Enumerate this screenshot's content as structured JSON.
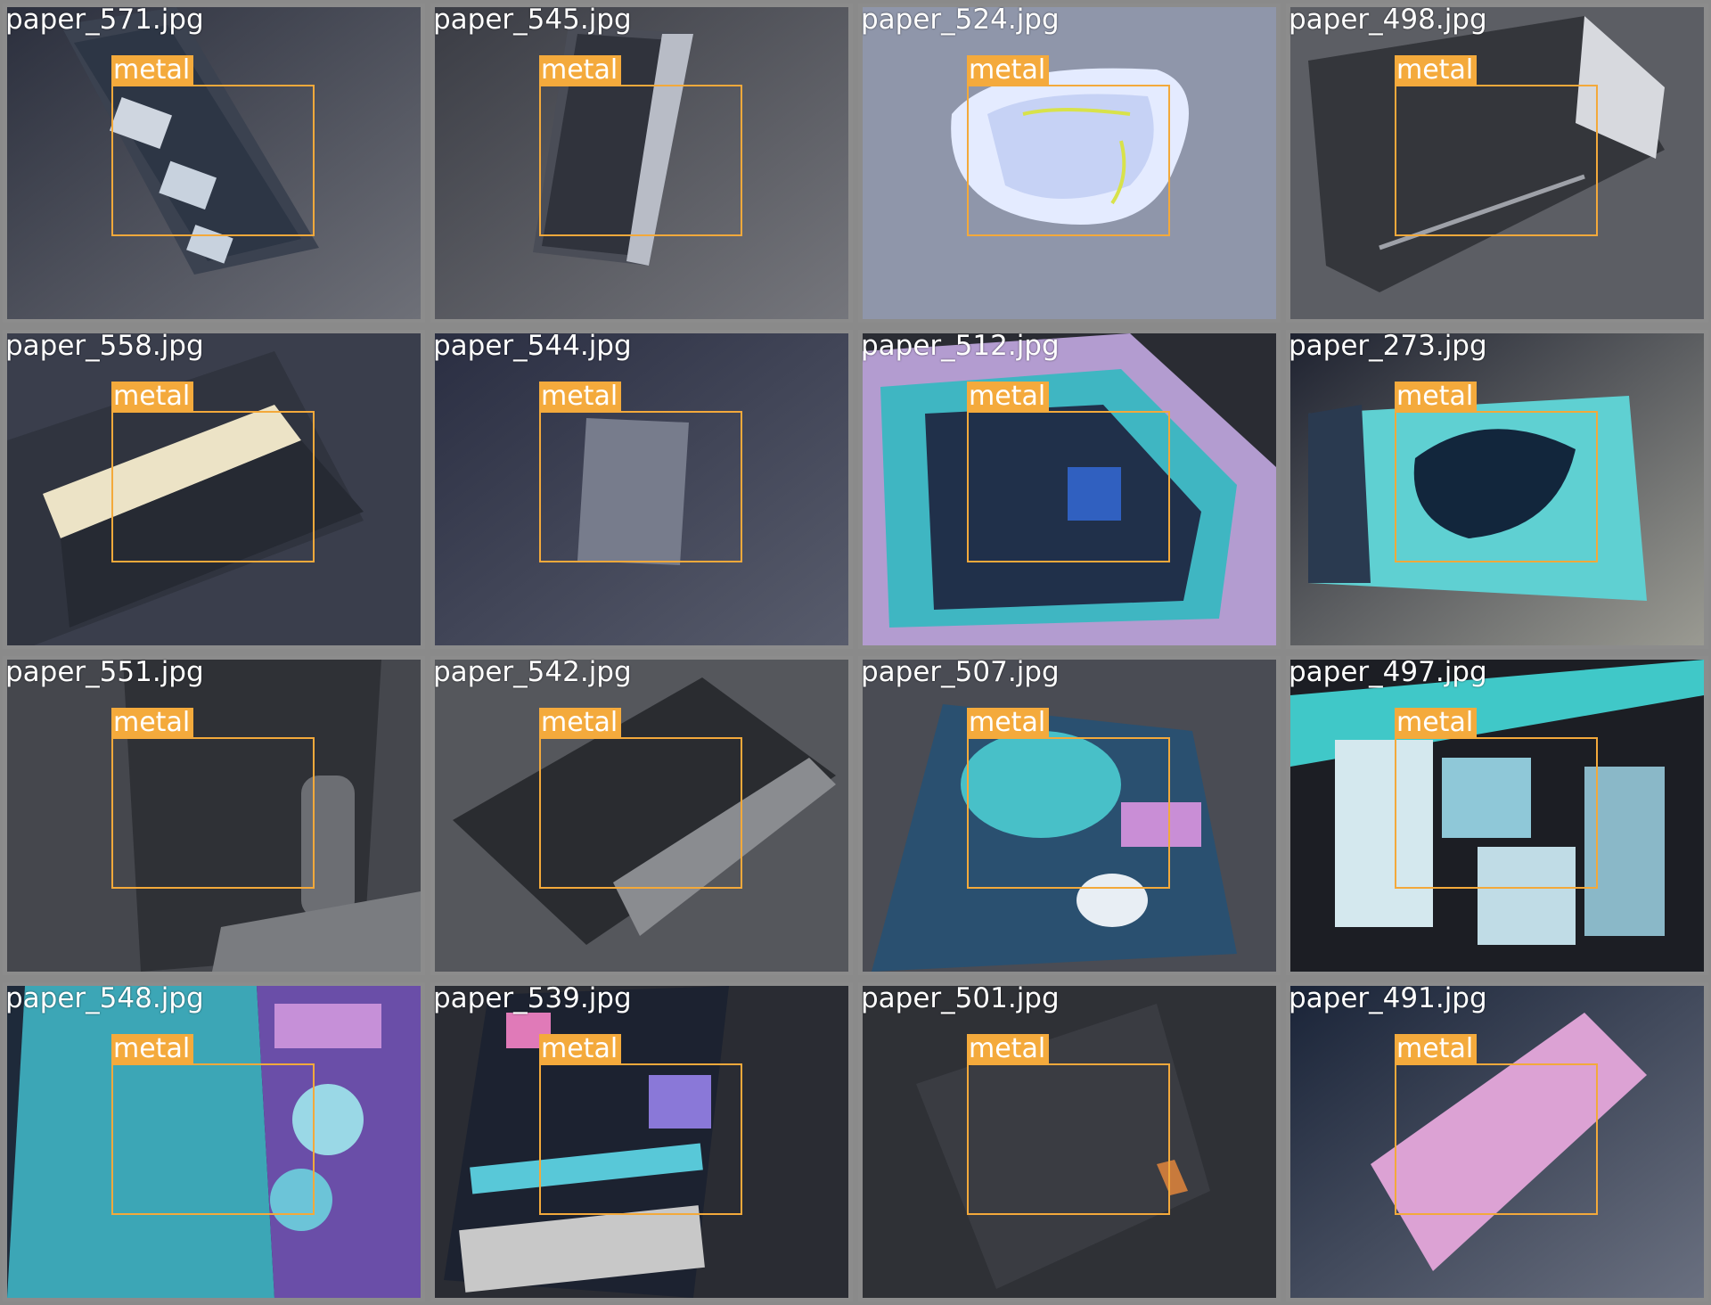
{
  "tiles": [
    {
      "filename": "paper_571.jpg",
      "label": "metal"
    },
    {
      "filename": "paper_545.jpg",
      "label": "metal"
    },
    {
      "filename": "paper_524.jpg",
      "label": "metal"
    },
    {
      "filename": "paper_498.jpg",
      "label": "metal"
    },
    {
      "filename": "paper_558.jpg",
      "label": "metal"
    },
    {
      "filename": "paper_544.jpg",
      "label": "metal"
    },
    {
      "filename": "paper_512.jpg",
      "label": "metal"
    },
    {
      "filename": "paper_273.jpg",
      "label": "metal"
    },
    {
      "filename": "paper_551.jpg",
      "label": "metal"
    },
    {
      "filename": "paper_542.jpg",
      "label": "metal"
    },
    {
      "filename": "paper_507.jpg",
      "label": "metal"
    },
    {
      "filename": "paper_497.jpg",
      "label": "metal"
    },
    {
      "filename": "paper_548.jpg",
      "label": "metal"
    },
    {
      "filename": "paper_539.jpg",
      "label": "metal"
    },
    {
      "filename": "paper_501.jpg",
      "label": "metal"
    },
    {
      "filename": "paper_491.jpg",
      "label": "metal"
    }
  ],
  "colors": {
    "box": "#f3a93b",
    "label_bg": "#f4aa3c",
    "grid_bg": "#8a8a8a"
  }
}
